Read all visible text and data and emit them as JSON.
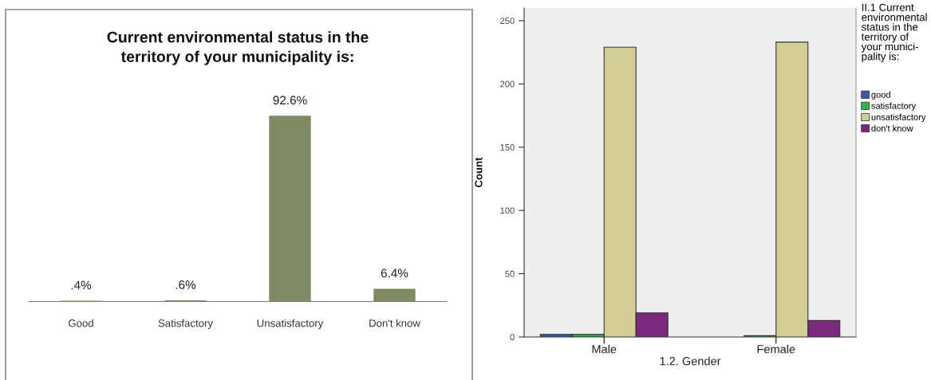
{
  "chart_data": [
    {
      "type": "bar",
      "title": "Current environmental status in the\nterritory of your municipality is:",
      "categories": [
        "Good",
        "Satisfactory",
        "Unsatisfactory",
        "Don't know"
      ],
      "values": [
        0.4,
        0.6,
        92.6,
        6.4
      ],
      "value_labels": [
        ".4%",
        ".6%",
        "92.6%",
        "6.4%"
      ],
      "color": "#7f8a63",
      "tick_labels": "x"
    },
    {
      "type": "bar",
      "categories": [
        "Male",
        "Female"
      ],
      "xlabel": "1.2. Gender",
      "ylabel": "Count",
      "legend_title": "II.1 Current\nenvironmental\nstatus in the\nterritory of\nyour munici-\npality is:",
      "series": [
        {
          "name": "good",
          "color": "#3e58ac",
          "values": [
            2,
            0
          ]
        },
        {
          "name": "satisfactory",
          "color": "#2eb848",
          "values": [
            2,
            1
          ]
        },
        {
          "name": "unsatisfactory",
          "color": "#d3ce97",
          "values": [
            229,
            233
          ]
        },
        {
          "name": "don't know",
          "color": "#7c287d",
          "values": [
            19,
            13
          ]
        }
      ],
      "ylim": [
        0,
        260
      ],
      "yticks": [
        0,
        50,
        100,
        150,
        200,
        250
      ],
      "legend": "right"
    }
  ]
}
